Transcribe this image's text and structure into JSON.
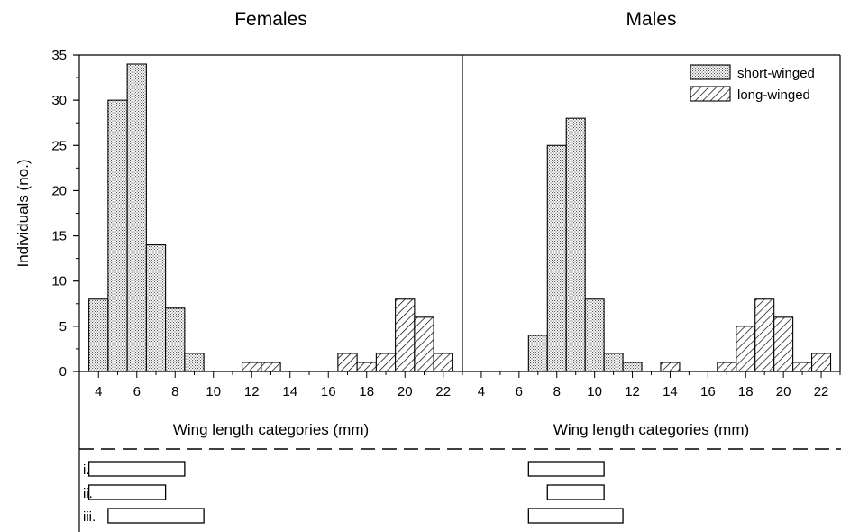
{
  "colors": {
    "ink": "#000000",
    "background": "#ffffff"
  },
  "chart_data": {
    "type": "bar",
    "ylabel": "Individuals (no.)",
    "ylim": [
      0,
      35
    ],
    "yticks": [
      0,
      5,
      10,
      15,
      20,
      25,
      30,
      35
    ],
    "xlim": [
      3,
      23
    ],
    "xticks": [
      4,
      6,
      8,
      10,
      12,
      14,
      16,
      18,
      20,
      22
    ],
    "legend": {
      "position": "top-right",
      "entries": [
        {
          "label": "short-winged",
          "pattern": "dotted"
        },
        {
          "label": "long-winged",
          "pattern": "hatched"
        }
      ]
    },
    "panels": [
      {
        "title": "Females",
        "xlabel": "Wing length categories (mm)",
        "series": [
          {
            "name": "short-winged",
            "x": [
              4,
              5,
              6,
              7,
              8,
              9
            ],
            "values": [
              8,
              30,
              34,
              14,
              7,
              2
            ]
          },
          {
            "name": "long-winged",
            "x": [
              12,
              13,
              17,
              18,
              19,
              20,
              21,
              22
            ],
            "values": [
              1,
              1,
              2,
              1,
              2,
              8,
              6,
              2
            ]
          }
        ],
        "ranges": [
          {
            "label": "i.",
            "from": 3.5,
            "to": 8.5
          },
          {
            "label": "ii.",
            "from": 3.5,
            "to": 7.5
          },
          {
            "label": "iii.",
            "from": 4.5,
            "to": 9.5
          }
        ]
      },
      {
        "title": "Males",
        "xlabel": "Wing length categories (mm)",
        "series": [
          {
            "name": "short-winged",
            "x": [
              7,
              8,
              9,
              10,
              11,
              12
            ],
            "values": [
              4,
              25,
              28,
              8,
              2,
              1
            ]
          },
          {
            "name": "long-winged",
            "x": [
              14,
              17,
              18,
              19,
              20,
              21,
              22
            ],
            "values": [
              1,
              1,
              5,
              8,
              6,
              1,
              2
            ]
          }
        ],
        "ranges": [
          {
            "label": "",
            "from": 6.5,
            "to": 10.5
          },
          {
            "label": "",
            "from": 7.5,
            "to": 10.5
          },
          {
            "label": "",
            "from": 6.5,
            "to": 11.5
          }
        ]
      }
    ]
  }
}
